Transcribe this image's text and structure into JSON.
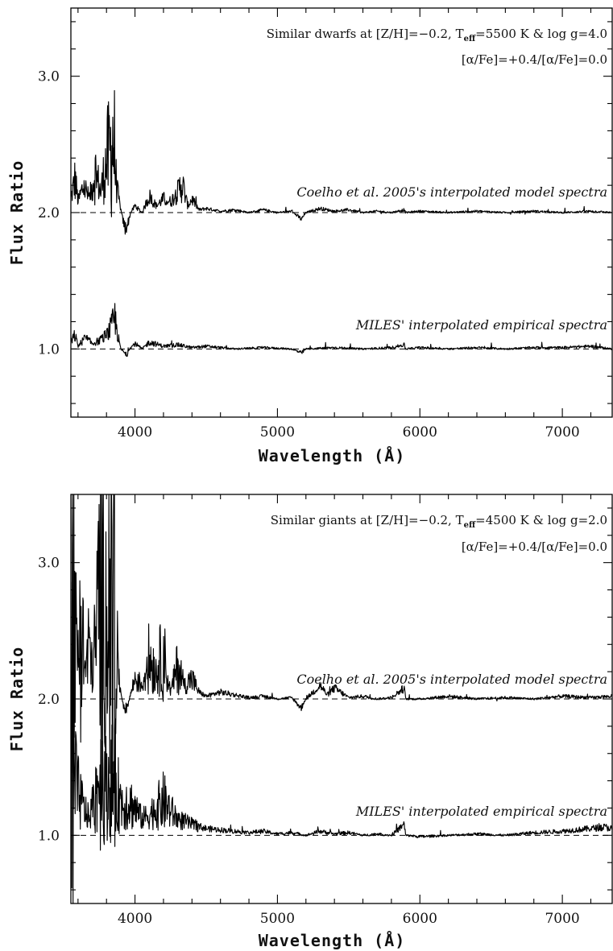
{
  "chart_data": [
    {
      "type": "line",
      "xlabel": "Wavelength (Å)",
      "ylabel": "Flux Ratio",
      "xlim": [
        3550,
        7350
      ],
      "ylim": [
        0.5,
        3.5
      ],
      "xticks": [
        4000,
        5000,
        6000,
        7000
      ],
      "xtick_labels": [
        "4000",
        "5000",
        "6000",
        "7000"
      ],
      "yticks": [
        1.0,
        2.0,
        3.0
      ],
      "ytick_labels": [
        "1.0",
        "2.0",
        "3.0"
      ],
      "annotation_line1": {
        "pre": "Similar dwarfs at [Z/H]=−0.2, T",
        "sub": "eff",
        "post": "=5500 K & log g=4.0"
      },
      "annotation_line2": "[α/Fe]=+0.4/[α/Fe]=0.0",
      "reference_levels": [
        2.0,
        1.0
      ],
      "series": [
        {
          "name": "Coelho et al. 2005's interpolated model spectra",
          "baseline": 2.0,
          "x": [
            3550,
            3580,
            3600,
            3640,
            3680,
            3720,
            3760,
            3800,
            3830,
            3850,
            3870,
            3890,
            3910,
            3930,
            3950,
            3970,
            4000,
            4050,
            4100,
            4150,
            4200,
            4250,
            4300,
            4330,
            4370,
            4400,
            4450,
            4500,
            4600,
            4700,
            4800,
            4900,
            5000,
            5100,
            5170,
            5180,
            5200,
            5300,
            5400,
            5500,
            5600,
            5700,
            5800,
            5890,
            5900,
            6000,
            6200,
            6400,
            6600,
            6800,
            7000,
            7200,
            7350
          ],
          "y": [
            2.1,
            2.25,
            2.08,
            2.2,
            2.1,
            2.3,
            2.15,
            2.38,
            2.45,
            2.57,
            2.2,
            2.08,
            1.97,
            1.88,
            1.92,
            2.0,
            2.05,
            2.0,
            2.12,
            2.05,
            2.1,
            2.08,
            2.15,
            2.22,
            2.05,
            2.1,
            2.02,
            2.03,
            2.01,
            2.02,
            2.0,
            2.02,
            2.0,
            2.01,
            1.95,
            1.97,
            2.0,
            2.03,
            2.01,
            2.02,
            2.0,
            2.01,
            2.0,
            2.02,
            2.0,
            2.01,
            2.0,
            2.01,
            2.0,
            2.01,
            2.0,
            2.01,
            2.0
          ]
        },
        {
          "name": "MILES' interpolated empirical spectra",
          "baseline": 1.0,
          "x": [
            3550,
            3580,
            3600,
            3650,
            3700,
            3750,
            3800,
            3830,
            3860,
            3880,
            3900,
            3920,
            3940,
            3960,
            4000,
            4050,
            4100,
            4200,
            4300,
            4400,
            4500,
            4700,
            4900,
            5100,
            5170,
            5200,
            5400,
            5600,
            5800,
            5890,
            5900,
            6000,
            6200,
            6400,
            6600,
            6800,
            7000,
            7200,
            7350
          ],
          "y": [
            1.05,
            1.1,
            1.02,
            1.08,
            1.04,
            1.06,
            1.1,
            1.15,
            1.22,
            1.1,
            1.0,
            0.98,
            0.95,
            1.0,
            1.04,
            1.0,
            1.05,
            1.02,
            1.03,
            1.01,
            1.02,
            1.0,
            1.01,
            1.0,
            0.97,
            1.0,
            1.01,
            1.0,
            1.01,
            1.03,
            1.0,
            1.01,
            1.0,
            1.01,
            1.0,
            1.01,
            1.01,
            1.02,
            1.0
          ]
        }
      ]
    },
    {
      "type": "line",
      "xlabel": "Wavelength (Å)",
      "ylabel": "Flux Ratio",
      "xlim": [
        3550,
        7350
      ],
      "ylim": [
        0.5,
        3.5
      ],
      "xticks": [
        4000,
        5000,
        6000,
        7000
      ],
      "xtick_labels": [
        "4000",
        "5000",
        "6000",
        "7000"
      ],
      "yticks": [
        1.0,
        2.0,
        3.0
      ],
      "ytick_labels": [
        "1.0",
        "2.0",
        "3.0"
      ],
      "annotation_line1": {
        "pre": "Similar giants at [Z/H]=−0.2, T",
        "sub": "eff",
        "post": "=4500 K & log g=2.0"
      },
      "annotation_line2": "[α/Fe]=+0.4/[α/Fe]=0.0",
      "reference_levels": [
        2.0,
        1.0
      ],
      "series": [
        {
          "name": "Coelho et al. 2005's interpolated model spectra",
          "baseline": 2.0,
          "x": [
            3550,
            3565,
            3580,
            3600,
            3620,
            3650,
            3680,
            3700,
            3730,
            3760,
            3790,
            3820,
            3850,
            3870,
            3880,
            3900,
            3920,
            3940,
            3960,
            4000,
            4050,
            4100,
            4150,
            4200,
            4220,
            4250,
            4300,
            4350,
            4400,
            4450,
            4500,
            4600,
            4700,
            4800,
            4900,
            5000,
            5100,
            5170,
            5180,
            5200,
            5250,
            5300,
            5350,
            5400,
            5500,
            5600,
            5700,
            5800,
            5890,
            5900,
            6000,
            6200,
            6400,
            6600,
            6800,
            7000,
            7200,
            7350
          ],
          "y": [
            2.85,
            3.35,
            2.5,
            2.3,
            2.6,
            2.2,
            2.4,
            2.2,
            2.5,
            2.8,
            2.6,
            2.7,
            3.25,
            2.6,
            2.2,
            2.05,
            1.95,
            1.92,
            2.0,
            2.15,
            2.1,
            2.3,
            2.2,
            2.35,
            2.2,
            2.05,
            2.25,
            2.1,
            2.15,
            2.05,
            2.02,
            2.05,
            2.03,
            2.01,
            2.02,
            2.0,
            2.01,
            1.93,
            1.97,
            2.0,
            2.05,
            2.1,
            2.03,
            2.08,
            2.01,
            2.02,
            2.0,
            2.01,
            2.08,
            2.0,
            2.0,
            2.02,
            2.0,
            2.01,
            2.0,
            2.02,
            2.01,
            2.02
          ]
        },
        {
          "name": "MILES' interpolated empirical spectra",
          "baseline": 1.0,
          "x": [
            3550,
            3580,
            3600,
            3640,
            3680,
            3720,
            3760,
            3800,
            3830,
            3860,
            3880,
            3900,
            3920,
            3950,
            4000,
            4050,
            4100,
            4150,
            4200,
            4250,
            4300,
            4350,
            4400,
            4500,
            4600,
            4700,
            4800,
            4900,
            5000,
            5100,
            5200,
            5300,
            5400,
            5500,
            5600,
            5700,
            5800,
            5890,
            5900,
            6000,
            6200,
            6400,
            6600,
            6800,
            7000,
            7100,
            7200,
            7300,
            7350
          ],
          "y": [
            1.55,
            1.4,
            1.3,
            1.2,
            1.12,
            1.3,
            1.45,
            1.35,
            1.38,
            1.4,
            1.3,
            1.25,
            1.22,
            1.25,
            1.2,
            1.12,
            1.15,
            1.2,
            1.25,
            1.18,
            1.12,
            1.1,
            1.08,
            1.05,
            1.04,
            1.03,
            1.02,
            1.03,
            1.01,
            1.02,
            1.0,
            1.03,
            1.01,
            1.02,
            1.0,
            1.01,
            1.0,
            1.08,
            1.0,
            0.99,
            1.0,
            1.01,
            1.0,
            1.02,
            1.03,
            1.04,
            1.05,
            1.06,
            1.05
          ]
        }
      ]
    }
  ]
}
